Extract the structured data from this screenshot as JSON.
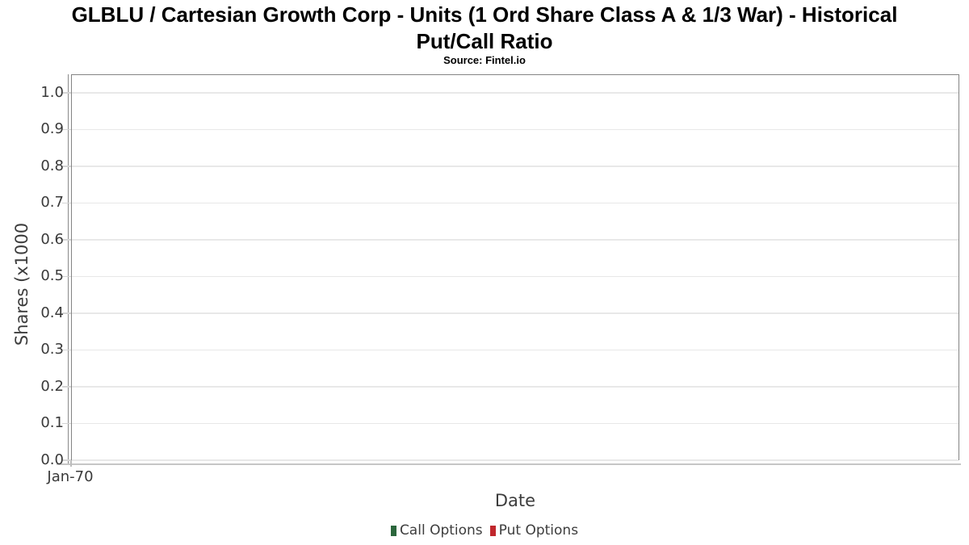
{
  "header": {
    "title_lines": [
      "GLBLU / Cartesian Growth Corp - Units (1 Ord Share Class A & 1/3 War) - Historical",
      "Put/Call Ratio"
    ],
    "subtitle": "Source: Fintel.io"
  },
  "chart_data": {
    "type": "line",
    "title": "GLBLU / Cartesian Growth Corp - Units (1 Ord Share Class A & 1/3 War) - Historical Put/Call Ratio",
    "subtitle": "Source: Fintel.io",
    "xlabel": "Date",
    "ylabel": "Shares (x1000",
    "x_ticks": [
      "Jan-70"
    ],
    "y_ticks": [
      "1.0",
      "0.9",
      "0.8",
      "0.7",
      "0.6",
      "0.5",
      "0.4",
      "0.3",
      "0.2",
      "0.1",
      "0.0"
    ],
    "ylim": [
      0,
      1.05
    ],
    "grid": true,
    "legend_position": "bottom-center",
    "series": [
      {
        "name": "Call Options",
        "color": "#2b663c",
        "values": []
      },
      {
        "name": "Put Options",
        "color": "#c0272d",
        "values": []
      }
    ],
    "colors": {
      "grid": "#e8e8e8",
      "frame": "#848484",
      "axis_text": "#3d3d3d",
      "title_text": "#000000",
      "call_green": "#2b663c",
      "put_red": "#c0272d"
    }
  }
}
